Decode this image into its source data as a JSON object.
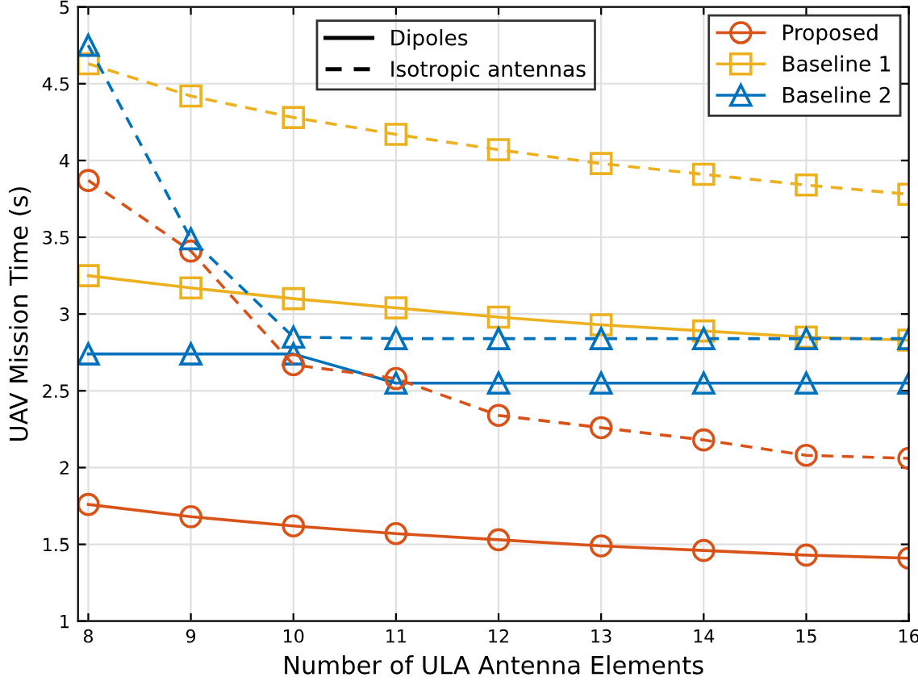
{
  "chart_data": {
    "type": "line",
    "xlabel": "Number of ULA Antenna Elements",
    "ylabel": "UAV Mission Time (s)",
    "x": [
      8,
      9,
      10,
      11,
      12,
      13,
      14,
      15,
      16
    ],
    "xlim": [
      7.9,
      16
    ],
    "xticks": [
      8,
      9,
      10,
      11,
      12,
      13,
      14,
      15,
      16
    ],
    "ylim": [
      1,
      5
    ],
    "yticks": [
      1,
      1.5,
      2,
      2.5,
      3,
      3.5,
      4,
      4.5,
      5
    ],
    "grid": true,
    "legend": "top right",
    "annotations": [
      "Dipoles",
      "Isotropic antennas"
    ],
    "series": [
      {
        "name": "Proposed",
        "color": "#d95319",
        "marker": "circle",
        "line_style": "solid",
        "values": [
          1.76,
          1.68,
          1.62,
          1.57,
          1.53,
          1.49,
          1.46,
          1.43,
          1.41
        ]
      },
      {
        "name": "Baseline 1",
        "color": "#edb120",
        "marker": "square",
        "line_style": "solid",
        "values": [
          3.25,
          3.17,
          3.1,
          3.04,
          2.98,
          2.93,
          2.89,
          2.85,
          2.83
        ]
      },
      {
        "name": "Baseline 2",
        "color": "#0072bd",
        "marker": "triangle",
        "line_style": "solid",
        "values": [
          2.74,
          2.74,
          2.74,
          2.55,
          2.55,
          2.55,
          2.55,
          2.55,
          2.55
        ]
      },
      {
        "color": "#d95319",
        "marker": "circle",
        "line_style": "dashed",
        "values": [
          3.87,
          3.41,
          2.67,
          2.58,
          2.34,
          2.26,
          2.18,
          2.08,
          2.06
        ]
      },
      {
        "color": "#edb120",
        "marker": "square",
        "line_style": "dashed",
        "values": [
          4.63,
          4.42,
          4.28,
          4.17,
          4.07,
          3.98,
          3.91,
          3.84,
          3.78
        ]
      },
      {
        "color": "#0072bd",
        "marker": "triangle",
        "line_style": "dashed",
        "values": [
          4.75,
          3.49,
          2.85,
          2.84,
          2.84,
          2.84,
          2.84,
          2.84,
          2.84
        ]
      }
    ]
  }
}
